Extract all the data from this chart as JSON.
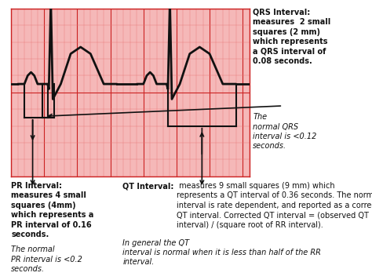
{
  "bg_color": "#ffffff",
  "grid_bg_color": "#f5b8b8",
  "grid_color_major": "#cc2222",
  "grid_color_minor": "#e87777",
  "ecg_color": "#111111",
  "ecg_lw": 2.0,
  "bracket_lw": 1.5,
  "arrow_lw": 1.2,
  "qrs_bold": "QRS Interval:\nmeasures  2 small\nsquares (2 mm)\nwhich represents\na QRS interval of\n0.08 seconds.",
  "qrs_italic": "The\nnormal QRS\ninterval is <0.12\nseconds.",
  "pr_bold": "PR Interval:\nmeasures 4 small\nsquares (4mm)\nwhich represents a\nPR interval of 0.16\nseconds.",
  "pr_italic": "The normal\nPR interval is <0.2\nseconds.",
  "qt_bold": "QT Interval:",
  "qt_normal": " measures 9 small squares (9 mm) which\nrepresents a QT interval of 0.36 seconds. The normal  QT\ninterval is rate dependent, and reported as a corrected\nQT interval. Corrected QT interval = (observed QT\ninterval) / (square root of RR interval).",
  "qt_italic": "In general the QT\ninterval is normal when it is less than half of the RR\ninterval.",
  "font_size": 7.0,
  "ecg_xlim": [
    0,
    36
  ],
  "ecg_ylim": [
    0,
    10
  ],
  "baseline": 5.5,
  "x_max": 36,
  "y_max": 10
}
